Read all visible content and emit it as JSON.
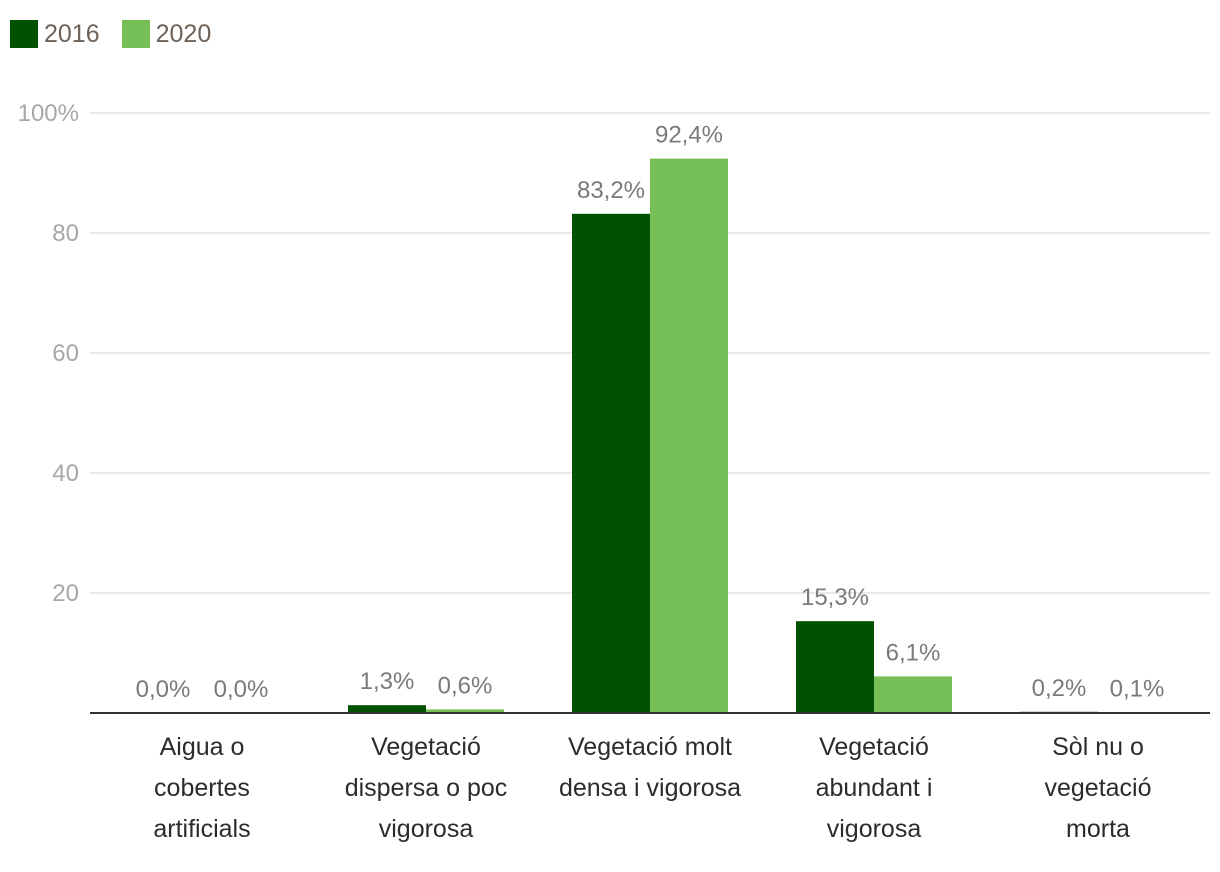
{
  "legend": [
    {
      "name": "2016",
      "color": "#005200"
    },
    {
      "name": "2020",
      "color": "#76bf57"
    }
  ],
  "chart_data": {
    "type": "bar",
    "categories": [
      [
        "Aigua o",
        "cobertes",
        "artificials"
      ],
      [
        "Vegetació",
        "dispersa o poc",
        "vigorosa"
      ],
      [
        "Vegetació molt",
        "densa i vigorosa"
      ],
      [
        "Vegetació",
        "abundant i",
        "vigorosa"
      ],
      [
        "Sòl nu o",
        "vegetació",
        "morta"
      ]
    ],
    "series": [
      {
        "name": "2016",
        "color": "#005200",
        "values": [
          0.0,
          1.3,
          83.2,
          15.3,
          0.2
        ],
        "labels": [
          "0,0%",
          "1,3%",
          "83,2%",
          "15,3%",
          "0,2%"
        ]
      },
      {
        "name": "2020",
        "color": "#76bf57",
        "values": [
          0.0,
          0.6,
          92.4,
          6.1,
          0.1
        ],
        "labels": [
          "0,0%",
          "0,6%",
          "92,4%",
          "6,1%",
          "0,1%"
        ]
      }
    ],
    "yticks": [
      {
        "value": 100,
        "label": "100%"
      },
      {
        "value": 80,
        "label": "80"
      },
      {
        "value": 60,
        "label": "60"
      },
      {
        "value": 40,
        "label": "40"
      },
      {
        "value": 20,
        "label": "20"
      }
    ],
    "ylim": [
      0,
      100
    ],
    "grid": true,
    "legend_position": "top-left",
    "title": "",
    "xlabel": "",
    "ylabel": ""
  }
}
